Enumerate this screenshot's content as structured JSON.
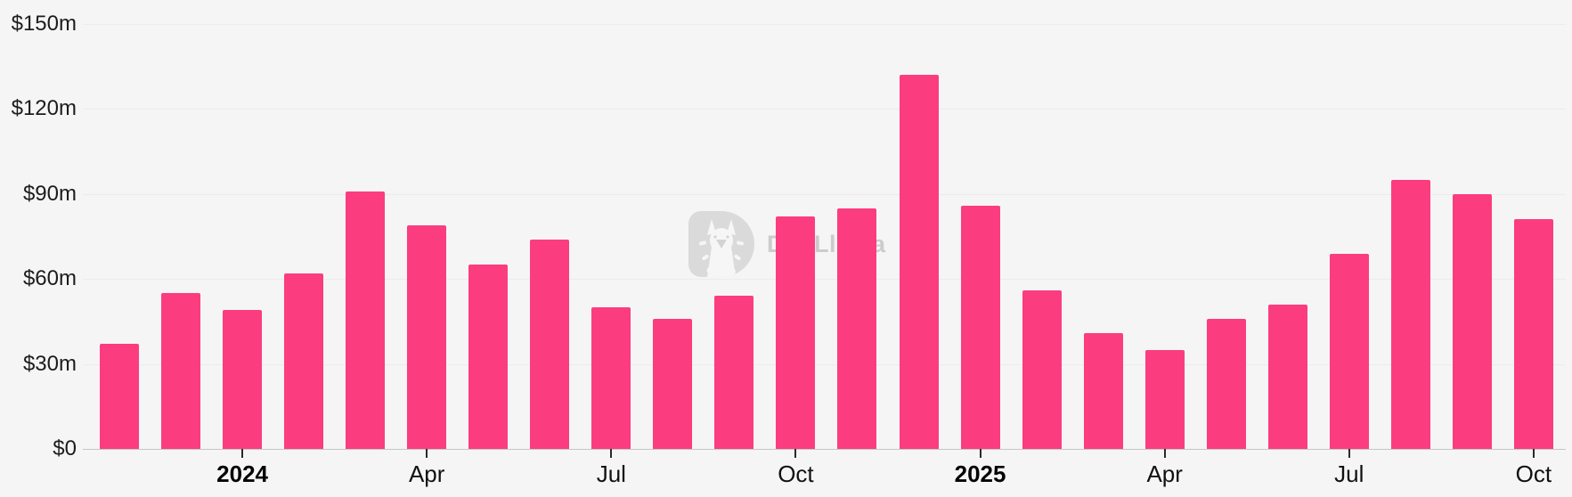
{
  "chart_data": {
    "type": "bar",
    "title": "",
    "xlabel": "",
    "ylabel": "",
    "unit": "USD millions",
    "ylim": [
      0,
      150
    ],
    "grid": "horizontal",
    "legend": "none",
    "bar_color": "#fb3d7f",
    "background_color": "#f5f5f5",
    "categories": [
      "Nov 2023",
      "Dec 2023",
      "Jan 2024",
      "Feb 2024",
      "Mar 2024",
      "Apr 2024",
      "May 2024",
      "Jun 2024",
      "Jul 2024",
      "Aug 2024",
      "Sep 2024",
      "Oct 2024",
      "Nov 2024",
      "Dec 2024",
      "Jan 2025",
      "Feb 2025",
      "Mar 2025",
      "Apr 2025",
      "May 2025",
      "Jun 2025",
      "Jul 2025",
      "Aug 2025",
      "Sep 2025",
      "Oct 2025"
    ],
    "values": [
      37,
      55,
      49,
      62,
      91,
      79,
      65,
      74,
      50,
      46,
      54,
      82,
      85,
      132,
      86,
      56,
      41,
      35,
      46,
      51,
      69,
      95,
      90,
      81
    ],
    "yticks": [
      {
        "value": 150,
        "label": "$150m"
      },
      {
        "value": 120,
        "label": "$120m"
      },
      {
        "value": 90,
        "label": "$90m"
      },
      {
        "value": 60,
        "label": "$60m"
      },
      {
        "value": 30,
        "label": "$30m"
      },
      {
        "value": 0,
        "label": "$0"
      }
    ],
    "xticks": [
      {
        "bar_index": 2,
        "label": "2024",
        "bold": true
      },
      {
        "bar_index": 5,
        "label": "Apr",
        "bold": false
      },
      {
        "bar_index": 8,
        "label": "Jul",
        "bold": false
      },
      {
        "bar_index": 11,
        "label": "Oct",
        "bold": false
      },
      {
        "bar_index": 14,
        "label": "2025",
        "bold": true
      },
      {
        "bar_index": 17,
        "label": "Apr",
        "bold": false
      },
      {
        "bar_index": 20,
        "label": "Jul",
        "bold": false
      },
      {
        "bar_index": 23,
        "label": "Oct",
        "bold": false
      }
    ]
  },
  "watermark": {
    "text": "DefiLlama",
    "logo": "defillama-llama-logo"
  }
}
